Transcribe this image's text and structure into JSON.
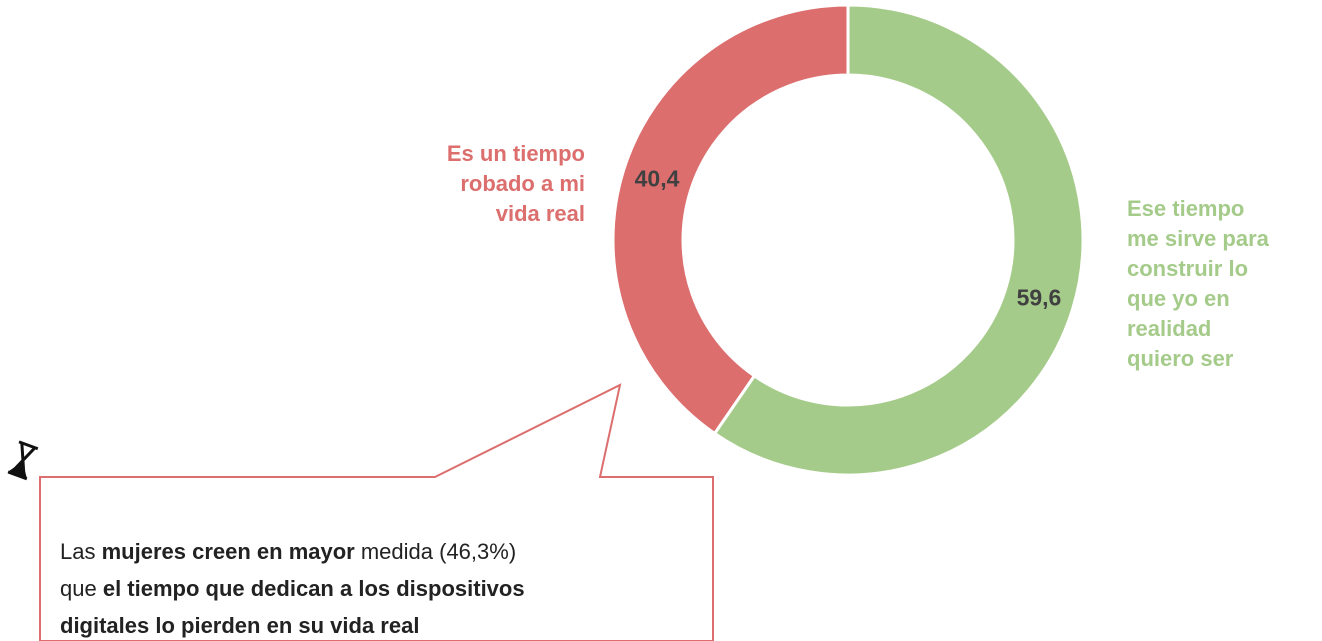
{
  "chart_data": {
    "type": "donut",
    "categories": [
      [
        "Es un tiempo",
        "robado a mi",
        "vida real"
      ],
      [
        "Ese tiempo",
        "me sirve para",
        "construir lo",
        "que yo en",
        "realidad",
        "quiero ser"
      ]
    ],
    "values": [
      40.4,
      59.6
    ],
    "value_labels": [
      "40,4",
      "59,6"
    ],
    "colors": [
      "#dc6e6e",
      "#a5cb8a"
    ],
    "annotation": [
      [
        {
          "text": "Las ",
          "bold": false
        },
        {
          "text": "mujeres creen en mayor",
          "bold": true
        },
        {
          "text": " medida (46,3%)",
          "bold": false
        }
      ],
      [
        {
          "text": "que ",
          "bold": false
        },
        {
          "text": "el tiempo que dedican a los dispositivos",
          "bold": true
        }
      ],
      [
        {
          "text": "digitales lo pierden en su vida real",
          "bold": true
        }
      ]
    ]
  }
}
